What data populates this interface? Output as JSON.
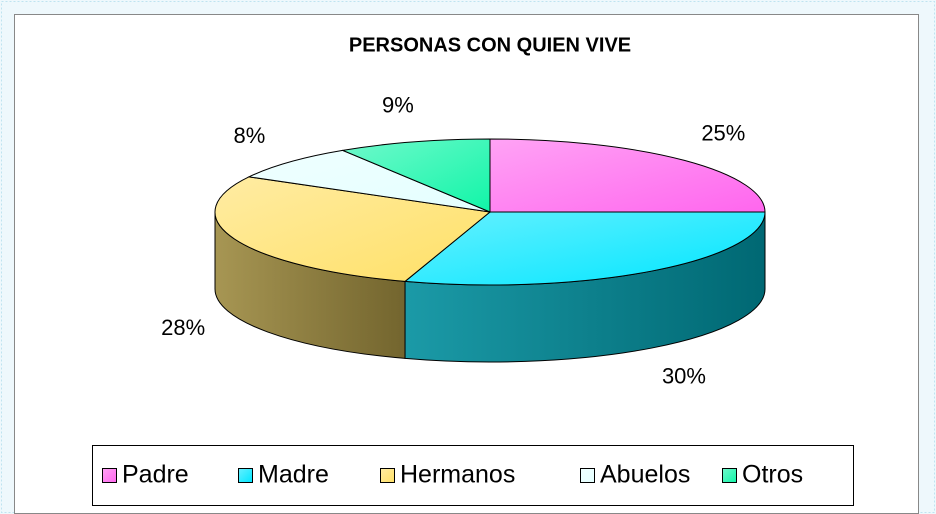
{
  "chart_data": {
    "type": "pie3d",
    "title": "PERSONAS CON QUIEN VIVE",
    "categories": [
      "Padre",
      "Madre",
      "Hermanos",
      "Abuelos",
      "Otros"
    ],
    "values": [
      25,
      30,
      28,
      8,
      9
    ],
    "value_labels": [
      "25%",
      "30%",
      "28%",
      "8%",
      "9%"
    ],
    "colors": [
      "#ff66ee",
      "#00e6ff",
      "#ffe066",
      "#e4ffff",
      "#11f5a8"
    ],
    "legend": "bottom"
  }
}
